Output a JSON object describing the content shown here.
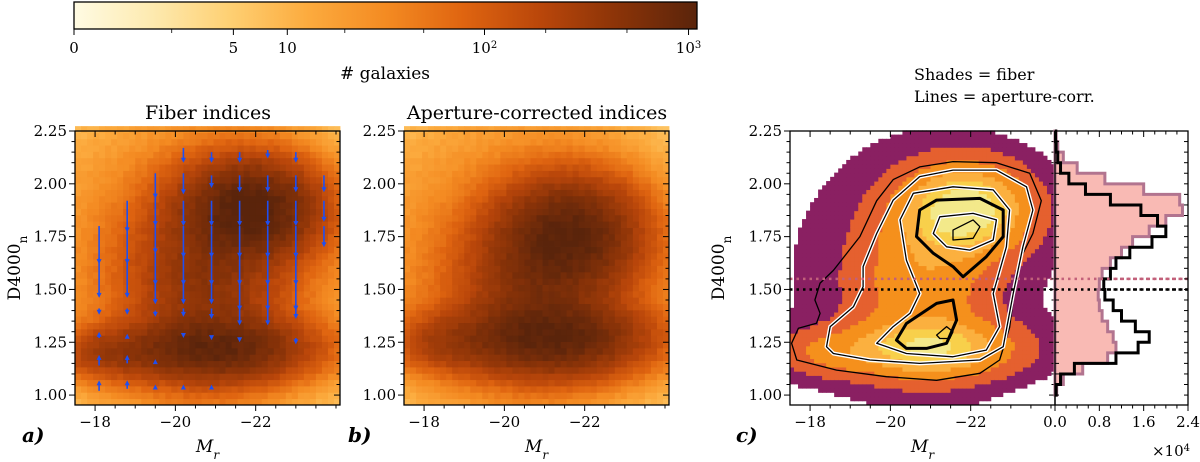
{
  "colorbar": {
    "label": "# galaxies",
    "ticks": [
      {
        "value": 0,
        "label": "0"
      },
      {
        "value": 5,
        "label": "5"
      },
      {
        "value": 10,
        "label": "10"
      },
      {
        "value": 100,
        "label": "10",
        "sup": "2"
      },
      {
        "value": 1000,
        "label": "10",
        "sup": "3"
      }
    ],
    "max": 1100,
    "colormap": [
      "#fffbe3",
      "#fdeab0",
      "#fed073",
      "#fcab3e",
      "#f48b22",
      "#df6410",
      "#b9460a",
      "#8a3308",
      "#5a240b"
    ]
  },
  "chart_data": [
    {
      "type": "heatmap",
      "panel": "a)",
      "title": "Fiber indices",
      "xlabel": "M",
      "xlabel_sub": "r",
      "ylabel": "D4000",
      "ylabel_sub": "n",
      "xlim": [
        -17.5,
        -24.1
      ],
      "ylim": [
        0.953,
        2.25
      ],
      "xticks": [
        -18,
        -20,
        -22
      ],
      "yticks": [
        1.0,
        1.25,
        1.5,
        1.75,
        2.0,
        2.25
      ],
      "peaks": [
        {
          "Mr": -21.9,
          "D4000n": 1.88
        },
        {
          "Mr": -21.0,
          "D4000n": 1.22
        }
      ],
      "arrows": [
        {
          "Mr": -18.1,
          "segments": [
            [
              1.8,
              1.62
            ],
            [
              1.65,
              1.46
            ],
            [
              1.41,
              1.38
            ],
            [
              1.27,
              1.3
            ],
            [
              1.14,
              1.19
            ],
            [
              1.02,
              1.07
            ]
          ]
        },
        {
          "Mr": -18.8,
          "segments": [
            [
              1.92,
              1.77
            ],
            [
              1.8,
              1.62
            ],
            [
              1.65,
              1.46
            ],
            [
              1.41,
              1.38
            ],
            [
              1.28,
              1.29
            ],
            [
              1.15,
              1.19
            ],
            [
              1.03,
              1.07
            ]
          ]
        },
        {
          "Mr": -19.5,
          "segments": [
            [
              2.05,
              1.93
            ],
            [
              1.95,
              1.8
            ],
            [
              1.82,
              1.67
            ],
            [
              1.68,
              1.52
            ],
            [
              1.55,
              1.43
            ],
            [
              1.4,
              1.37
            ],
            [
              1.15,
              1.17
            ],
            [
              1.03,
              1.05
            ]
          ]
        },
        {
          "Mr": -20.2,
          "segments": [
            [
              2.17,
              2.1
            ],
            [
              2.05,
              1.95
            ],
            [
              1.92,
              1.8
            ],
            [
              1.8,
              1.65
            ],
            [
              1.68,
              1.52
            ],
            [
              1.55,
              1.43
            ],
            [
              1.41,
              1.37
            ],
            [
              1.28,
              1.27
            ],
            [
              1.03,
              1.05
            ]
          ]
        },
        {
          "Mr": -20.9,
          "segments": [
            [
              2.15,
              2.1
            ],
            [
              2.04,
              1.98
            ],
            [
              1.92,
              1.8
            ],
            [
              1.8,
              1.65
            ],
            [
              1.67,
              1.52
            ],
            [
              1.53,
              1.43
            ],
            [
              1.41,
              1.36
            ],
            [
              1.27,
              1.26
            ],
            [
              1.03,
              1.05
            ]
          ]
        },
        {
          "Mr": -21.6,
          "segments": [
            [
              2.15,
              2.1
            ],
            [
              2.04,
              1.96
            ],
            [
              1.92,
              1.8
            ],
            [
              1.8,
              1.65
            ],
            [
              1.67,
              1.52
            ],
            [
              1.55,
              1.4
            ],
            [
              1.41,
              1.33
            ],
            [
              1.27,
              1.25
            ]
          ]
        },
        {
          "Mr": -22.3,
          "segments": [
            [
              2.16,
              2.12
            ],
            [
              2.04,
              1.96
            ],
            [
              1.92,
              1.8
            ],
            [
              1.8,
              1.65
            ],
            [
              1.67,
              1.52
            ],
            [
              1.55,
              1.4
            ],
            [
              1.41,
              1.33
            ]
          ]
        },
        {
          "Mr": -23.0,
          "segments": [
            [
              2.15,
              2.1
            ],
            [
              2.04,
              1.96
            ],
            [
              1.92,
              1.8
            ],
            [
              1.8,
              1.65
            ],
            [
              1.67,
              1.52
            ],
            [
              1.55,
              1.4
            ],
            [
              1.41,
              1.36
            ],
            [
              1.27,
              1.24
            ]
          ]
        },
        {
          "Mr": -23.7,
          "segments": [
            [
              2.04,
              1.96
            ],
            [
              1.92,
              1.82
            ],
            [
              1.8,
              1.7
            ]
          ]
        }
      ],
      "arrow_color": "#1f4ff0"
    },
    {
      "type": "heatmap",
      "panel": "b)",
      "title": "Aperture-corrected indices",
      "xlabel": "M",
      "xlabel_sub": "r",
      "xlim": [
        -17.5,
        -24.1
      ],
      "ylim": [
        0.953,
        2.25
      ],
      "xticks": [
        -18,
        -20,
        -22
      ],
      "yticks": [
        1.0,
        1.25,
        1.5,
        1.75,
        2.0,
        2.25
      ],
      "peaks": [
        {
          "Mr": -21.6,
          "D4000n": 1.76
        },
        {
          "Mr": -21.2,
          "D4000n": 1.27
        }
      ]
    },
    {
      "type": "contour",
      "panel": "c)",
      "legend": [
        "Shades = fiber",
        "Lines = aperture-corr."
      ],
      "xlabel": "M",
      "xlabel_sub": "r",
      "ylabel": "D4000",
      "ylabel_sub": "n",
      "xlim": [
        -17.5,
        -24.1
      ],
      "ylim": [
        0.953,
        2.25
      ],
      "xticks": [
        -18,
        -20,
        -22
      ],
      "yticks": [
        1.0,
        1.25,
        1.5,
        1.75,
        2.0,
        2.25
      ],
      "shade_colors": [
        "#8a2062",
        "#e5602f",
        "#f5901c",
        "#fbb03f",
        "#f8d04b",
        "#f3e98a"
      ],
      "hlines": [
        {
          "y": 1.55,
          "color": "#c2607a"
        },
        {
          "y": 1.5,
          "color": "#000000"
        }
      ],
      "contour_lines": [
        {
          "style": "thin",
          "points": [
            [
              -17.54,
              1.245
            ],
            [
              -17.71,
              1.316
            ],
            [
              -18.16,
              1.34
            ],
            [
              -18.25,
              1.387
            ],
            [
              -18.12,
              1.45
            ],
            [
              -18.25,
              1.53
            ],
            [
              -18.58,
              1.59
            ],
            [
              -19.24,
              1.75
            ],
            [
              -19.66,
              1.92
            ],
            [
              -20.07,
              2.02
            ],
            [
              -20.73,
              2.08
            ],
            [
              -21.56,
              2.105
            ],
            [
              -22.64,
              2.1
            ],
            [
              -23.47,
              2.05
            ],
            [
              -23.76,
              1.92
            ],
            [
              -23.55,
              1.765
            ],
            [
              -23.22,
              1.64
            ],
            [
              -23.06,
              1.45
            ],
            [
              -22.97,
              1.32
            ],
            [
              -22.72,
              1.166
            ],
            [
              -22.23,
              1.103
            ],
            [
              -21.15,
              1.07
            ],
            [
              -19.9,
              1.087
            ],
            [
              -18.66,
              1.118
            ],
            [
              -17.67,
              1.166
            ]
          ]
        },
        {
          "style": "double",
          "points": [
            [
              -18.41,
              1.229
            ],
            [
              -18.5,
              1.324
            ],
            [
              -19.08,
              1.418
            ],
            [
              -19.32,
              1.513
            ],
            [
              -19.32,
              1.608
            ],
            [
              -19.66,
              1.765
            ],
            [
              -20.07,
              1.923
            ],
            [
              -20.73,
              2.034
            ],
            [
              -21.56,
              2.065
            ],
            [
              -22.64,
              2.065
            ],
            [
              -23.39,
              1.986
            ],
            [
              -23.55,
              1.876
            ],
            [
              -23.3,
              1.702
            ],
            [
              -23.06,
              1.481
            ],
            [
              -22.81,
              1.229
            ],
            [
              -22.23,
              1.166
            ],
            [
              -20.73,
              1.15
            ],
            [
              -19.49,
              1.166
            ],
            [
              -18.58,
              1.197
            ]
          ]
        },
        {
          "style": "double",
          "points": [
            [
              -19.66,
              1.245
            ],
            [
              -20.07,
              1.324
            ],
            [
              -20.49,
              1.387
            ],
            [
              -20.73,
              1.481
            ],
            [
              -20.4,
              1.639
            ],
            [
              -20.24,
              1.829
            ],
            [
              -20.57,
              1.955
            ],
            [
              -21.56,
              1.986
            ],
            [
              -22.56,
              1.971
            ],
            [
              -22.97,
              1.876
            ],
            [
              -22.89,
              1.702
            ],
            [
              -22.56,
              1.481
            ],
            [
              -22.72,
              1.324
            ],
            [
              -22.39,
              1.213
            ],
            [
              -21.56,
              1.181
            ],
            [
              -20.4,
              1.197
            ]
          ]
        },
        {
          "style": "thick",
          "points": [
            [
              -20.65,
              1.75
            ],
            [
              -20.73,
              1.876
            ],
            [
              -21.15,
              1.923
            ],
            [
              -22.23,
              1.931
            ],
            [
              -22.81,
              1.876
            ],
            [
              -22.81,
              1.75
            ],
            [
              -22.39,
              1.655
            ],
            [
              -21.81,
              1.56
            ],
            [
              -21.56,
              1.608
            ],
            [
              -21.07,
              1.671
            ]
          ]
        },
        {
          "style": "thick",
          "points": [
            [
              -20.15,
              1.26
            ],
            [
              -20.4,
              1.339
            ],
            [
              -21.15,
              1.434
            ],
            [
              -21.56,
              1.45
            ],
            [
              -21.65,
              1.355
            ],
            [
              -21.4,
              1.245
            ],
            [
              -20.9,
              1.221
            ],
            [
              -20.4,
              1.221
            ]
          ]
        },
        {
          "style": "double",
          "points": [
            [
              -21.07,
              1.765
            ],
            [
              -21.23,
              1.844
            ],
            [
              -22.06,
              1.86
            ],
            [
              -22.64,
              1.829
            ],
            [
              -22.56,
              1.734
            ],
            [
              -21.98,
              1.686
            ],
            [
              -21.4,
              1.702
            ]
          ]
        },
        {
          "style": "thin",
          "points": [
            [
              -21.56,
              1.781
            ],
            [
              -22.06,
              1.829
            ],
            [
              -22.23,
              1.797
            ],
            [
              -22.06,
              1.742
            ],
            [
              -21.56,
              1.734
            ]
          ]
        },
        {
          "style": "thin",
          "points": [
            [
              -21.15,
              1.284
            ],
            [
              -21.4,
              1.324
            ],
            [
              -21.56,
              1.3
            ],
            [
              -21.48,
              1.268
            ],
            [
              -21.23,
              1.268
            ]
          ]
        }
      ]
    },
    {
      "type": "bar",
      "orientation": "horizontal-step",
      "xlim": [
        0,
        2.4
      ],
      "xticks": [
        0.0,
        0.8,
        1.6,
        2.4
      ],
      "xtick_labels": [
        "0.0",
        "0.8",
        "1.6",
        "2.4"
      ],
      "xscale_label": "×10",
      "xscale_sup": "4",
      "bin_edges_start": 1.0,
      "bin_width": 0.05,
      "series": [
        {
          "name": "fiber",
          "fill": "#f9bab4",
          "edge": "#b2748f",
          "values": [
            0.03,
            0.15,
            0.5,
            0.95,
            1.1,
            1.05,
            0.95,
            0.85,
            0.8,
            0.78,
            0.8,
            0.85,
            1.0,
            1.2,
            1.4,
            1.7,
            2.0,
            2.3,
            2.25,
            1.6,
            0.9,
            0.4,
            0.15,
            0.05,
            0.02
          ]
        },
        {
          "name": "aperture-corr.",
          "edge": "#000000",
          "values": [
            0.02,
            0.1,
            0.35,
            1.1,
            1.5,
            1.7,
            1.45,
            1.2,
            1.05,
            0.9,
            0.88,
            1.0,
            1.1,
            1.35,
            1.75,
            2.0,
            1.85,
            1.55,
            1.0,
            0.55,
            0.25,
            0.1,
            0.05,
            0.02,
            0.01
          ]
        }
      ]
    }
  ]
}
